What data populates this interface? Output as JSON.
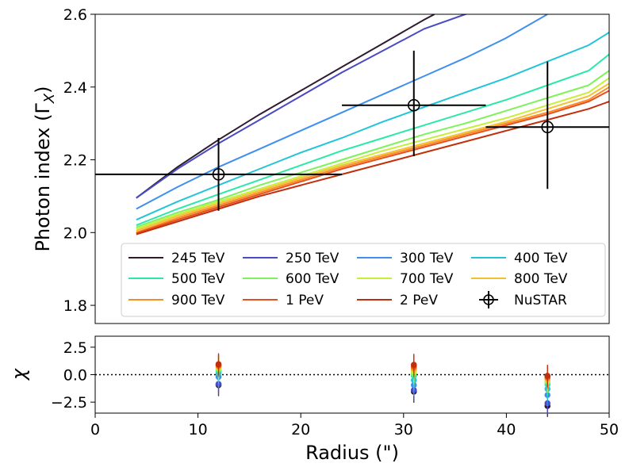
{
  "chart_data": [
    {
      "type": "line",
      "panel": "top",
      "ylabel_main": "Photon index (Γ",
      "ylabel_sub": "X",
      "ylabel_close": ")",
      "xlim": [
        0,
        50
      ],
      "ylim": [
        1.75,
        2.6
      ],
      "yticks": [
        1.8,
        2.0,
        2.2,
        2.4,
        2.6
      ],
      "ytick_labels": [
        "1.8",
        "2.0",
        "2.2",
        "2.4",
        "2.6"
      ],
      "grid": false,
      "legend_placement": "lower-right",
      "series": [
        {
          "name": "245 TeV",
          "color": "#2e1b2f",
          "x": [
            4,
            8,
            12,
            16,
            20,
            24,
            28,
            32,
            33
          ],
          "values": [
            2.095,
            2.18,
            2.255,
            2.325,
            2.39,
            2.455,
            2.52,
            2.585,
            2.6
          ]
        },
        {
          "name": "250 TeV",
          "color": "#4a4ac4",
          "x": [
            4,
            8,
            12,
            16,
            20,
            24,
            28,
            32,
            36,
            37
          ],
          "values": [
            2.095,
            2.175,
            2.245,
            2.31,
            2.375,
            2.44,
            2.5,
            2.56,
            2.6,
            2.61
          ]
        },
        {
          "name": "300 TeV",
          "color": "#3f8fef",
          "x": [
            4,
            8,
            12,
            16,
            20,
            24,
            28,
            32,
            36,
            40,
            44
          ],
          "values": [
            2.065,
            2.125,
            2.18,
            2.23,
            2.28,
            2.33,
            2.38,
            2.43,
            2.48,
            2.535,
            2.6
          ]
        },
        {
          "name": "400 TeV",
          "color": "#22c4d8",
          "x": [
            4,
            8,
            12,
            16,
            20,
            24,
            28,
            32,
            36,
            40,
            44,
            48,
            50
          ],
          "values": [
            2.035,
            2.085,
            2.13,
            2.175,
            2.22,
            2.26,
            2.305,
            2.345,
            2.385,
            2.425,
            2.47,
            2.515,
            2.55
          ]
        },
        {
          "name": "500 TeV",
          "color": "#2be8a8",
          "x": [
            4,
            8,
            12,
            16,
            20,
            24,
            28,
            32,
            36,
            40,
            44,
            48,
            50
          ],
          "values": [
            2.02,
            2.065,
            2.105,
            2.145,
            2.185,
            2.225,
            2.26,
            2.295,
            2.33,
            2.365,
            2.405,
            2.445,
            2.49
          ]
        },
        {
          "name": "600 TeV",
          "color": "#7ef25a",
          "x": [
            4,
            8,
            12,
            16,
            20,
            24,
            28,
            32,
            36,
            40,
            44,
            48,
            50
          ],
          "values": [
            2.015,
            2.055,
            2.09,
            2.13,
            2.165,
            2.2,
            2.235,
            2.27,
            2.3,
            2.335,
            2.37,
            2.405,
            2.445
          ]
        },
        {
          "name": "700 TeV",
          "color": "#c8ee3a",
          "x": [
            4,
            8,
            12,
            16,
            20,
            24,
            28,
            32,
            36,
            40,
            44,
            48,
            50
          ],
          "values": [
            2.01,
            2.05,
            2.085,
            2.12,
            2.155,
            2.19,
            2.225,
            2.255,
            2.285,
            2.315,
            2.35,
            2.385,
            2.425
          ]
        },
        {
          "name": "800 TeV",
          "color": "#f2c030",
          "x": [
            4,
            8,
            12,
            16,
            20,
            24,
            28,
            32,
            36,
            40,
            44,
            48,
            50
          ],
          "values": [
            2.005,
            2.045,
            2.08,
            2.115,
            2.15,
            2.185,
            2.215,
            2.245,
            2.275,
            2.305,
            2.34,
            2.375,
            2.41
          ]
        },
        {
          "name": "900 TeV",
          "color": "#fb8a28",
          "x": [
            4,
            8,
            12,
            16,
            20,
            24,
            28,
            32,
            36,
            40,
            44,
            48,
            50
          ],
          "values": [
            2.0,
            2.04,
            2.075,
            2.11,
            2.145,
            2.18,
            2.21,
            2.24,
            2.27,
            2.3,
            2.33,
            2.365,
            2.4
          ]
        },
        {
          "name": "1 PeV",
          "color": "#e5501c",
          "x": [
            4,
            8,
            12,
            16,
            20,
            24,
            28,
            32,
            36,
            40,
            44,
            48,
            50
          ],
          "values": [
            1.998,
            2.035,
            2.07,
            2.105,
            2.14,
            2.175,
            2.205,
            2.235,
            2.265,
            2.295,
            2.325,
            2.36,
            2.39
          ]
        },
        {
          "name": "2 PeV",
          "color": "#c0300c",
          "x": [
            4,
            8,
            12,
            16,
            20,
            24,
            28,
            32,
            36,
            40,
            44,
            48,
            50
          ],
          "values": [
            1.995,
            2.03,
            2.065,
            2.1,
            2.13,
            2.16,
            2.19,
            2.22,
            2.25,
            2.28,
            2.31,
            2.34,
            2.36
          ]
        }
      ],
      "nustar": {
        "name": "NuSTAR",
        "color": "#000000",
        "points": [
          {
            "x": 12,
            "xlo": 0,
            "xhi": 24,
            "y": 2.16,
            "ylo": 2.06,
            "yhi": 2.26
          },
          {
            "x": 31,
            "xlo": 24,
            "xhi": 38,
            "y": 2.35,
            "ylo": 2.21,
            "yhi": 2.5
          },
          {
            "x": 44,
            "xlo": 38,
            "xhi": 50,
            "y": 2.29,
            "ylo": 2.12,
            "yhi": 2.47
          }
        ]
      },
      "legend_order": [
        "245 TeV",
        "250 TeV",
        "300 TeV",
        "400 TeV",
        "500 TeV",
        "600 TeV",
        "700 TeV",
        "800 TeV",
        "900 TeV",
        "1 PeV",
        "2 PeV",
        "NuSTAR"
      ]
    },
    {
      "type": "scatter",
      "panel": "bottom",
      "xlabel": "Radius (\")",
      "ylabel": "χ",
      "xlim": [
        0,
        50
      ],
      "ylim": [
        -3.5,
        3.5
      ],
      "xticks": [
        0,
        10,
        20,
        30,
        40,
        50
      ],
      "xtick_labels": [
        "0",
        "10",
        "20",
        "30",
        "40",
        "50"
      ],
      "yticks": [
        -2.5,
        0.0,
        2.5
      ],
      "ytick_labels": [
        "−2.5",
        "0.0",
        "2.5"
      ],
      "reference_line": {
        "y": 0,
        "style": "dotted"
      },
      "radii": [
        12,
        31,
        44
      ],
      "series": [
        {
          "name": "245 TeV",
          "color": "#2e1b2f",
          "values": [
            -0.95,
            -1.55,
            -2.85
          ]
        },
        {
          "name": "250 TeV",
          "color": "#4a4ac4",
          "values": [
            -0.85,
            -1.4,
            -2.6
          ]
        },
        {
          "name": "300 TeV",
          "color": "#3f8fef",
          "values": [
            -0.2,
            -0.95,
            -1.85
          ]
        },
        {
          "name": "400 TeV",
          "color": "#22c4d8",
          "values": [
            0.15,
            -0.5,
            -1.3
          ]
        },
        {
          "name": "500 TeV",
          "color": "#2be8a8",
          "values": [
            0.35,
            -0.1,
            -0.9
          ]
        },
        {
          "name": "600 TeV",
          "color": "#7ef25a",
          "values": [
            0.5,
            0.1,
            -0.65
          ]
        },
        {
          "name": "700 TeV",
          "color": "#c8ee3a",
          "values": [
            0.6,
            0.3,
            -0.5
          ]
        },
        {
          "name": "800 TeV",
          "color": "#f2c030",
          "values": [
            0.7,
            0.45,
            -0.4
          ]
        },
        {
          "name": "900 TeV",
          "color": "#fb8a28",
          "values": [
            0.8,
            0.6,
            -0.3
          ]
        },
        {
          "name": "1 PeV",
          "color": "#e5501c",
          "values": [
            0.85,
            0.75,
            -0.2
          ]
        },
        {
          "name": "2 PeV",
          "color": "#c0300c",
          "values": [
            0.95,
            0.9,
            -0.1
          ]
        }
      ],
      "error": 1.0
    }
  ]
}
